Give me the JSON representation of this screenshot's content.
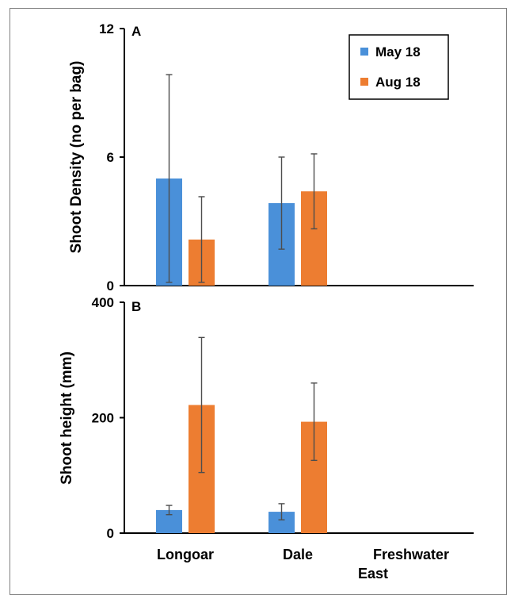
{
  "colors": {
    "series_a": "#4a90d9",
    "series_b": "#ed7d31",
    "error_bar": "#4d4d4d",
    "axis": "#000000"
  },
  "chart_data": [
    {
      "type": "bar",
      "panel_label": "A",
      "title": "",
      "xlabel": "",
      "ylabel": "Shoot Density (no per bag)",
      "ylim": [
        0,
        12
      ],
      "yticks": [
        0,
        6,
        12
      ],
      "categories": [
        "Longoar",
        "Dale",
        "Freshwater East"
      ],
      "series": [
        {
          "name": "May 18",
          "color": "#4a90d9",
          "values": [
            5.0,
            3.85,
            null
          ],
          "error": [
            4.85,
            2.15,
            null
          ]
        },
        {
          "name": "Aug 18",
          "color": "#ed7d31",
          "values": [
            2.15,
            4.4,
            null
          ],
          "error": [
            2.0,
            1.75,
            null
          ]
        }
      ],
      "grid": false,
      "legend": "top-right"
    },
    {
      "type": "bar",
      "panel_label": "B",
      "title": "",
      "xlabel": "",
      "ylabel": "Shoot height (mm)",
      "ylim": [
        0,
        400
      ],
      "yticks": [
        0,
        200,
        400
      ],
      "categories": [
        "Longoar",
        "Dale",
        "Freshwater East"
      ],
      "series": [
        {
          "name": "May 18",
          "color": "#4a90d9",
          "values": [
            40,
            37,
            null
          ],
          "error": [
            8,
            14,
            null
          ]
        },
        {
          "name": "Aug 18",
          "color": "#ed7d31",
          "values": [
            222,
            193,
            null
          ],
          "error": [
            117,
            67,
            null
          ]
        }
      ],
      "grid": false,
      "legend": "none"
    }
  ]
}
